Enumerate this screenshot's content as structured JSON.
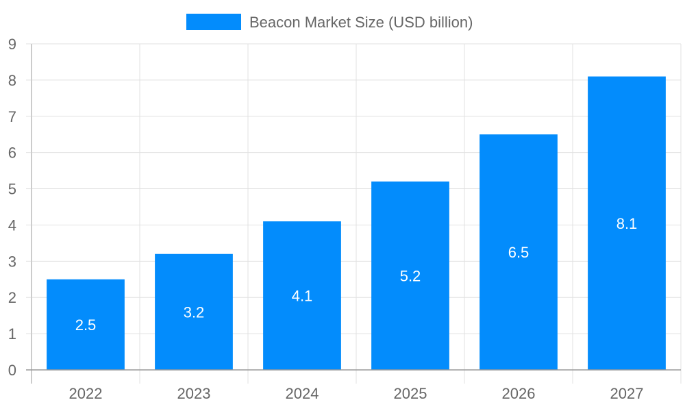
{
  "chart_data": {
    "type": "bar",
    "title": "",
    "xlabel": "",
    "ylabel": "",
    "categories": [
      "2022",
      "2023",
      "2024",
      "2025",
      "2026",
      "2027"
    ],
    "series": [
      {
        "name": "Beacon Market Size (USD billion)",
        "values": [
          2.5,
          3.2,
          4.1,
          5.2,
          6.5,
          8.1
        ]
      }
    ],
    "ylim": [
      0,
      9
    ],
    "yticks": [
      0,
      1,
      2,
      3,
      4,
      5,
      6,
      7,
      8,
      9
    ],
    "data_labels": [
      "2.5",
      "3.2",
      "4.1",
      "5.2",
      "6.5",
      "8.1"
    ],
    "grid": true,
    "legend_position": "top",
    "colors": {
      "bar": "#038cfc",
      "grid": "#e0e0e0",
      "axis": "#999999",
      "text": "#666666",
      "label": "#ffffff"
    }
  }
}
